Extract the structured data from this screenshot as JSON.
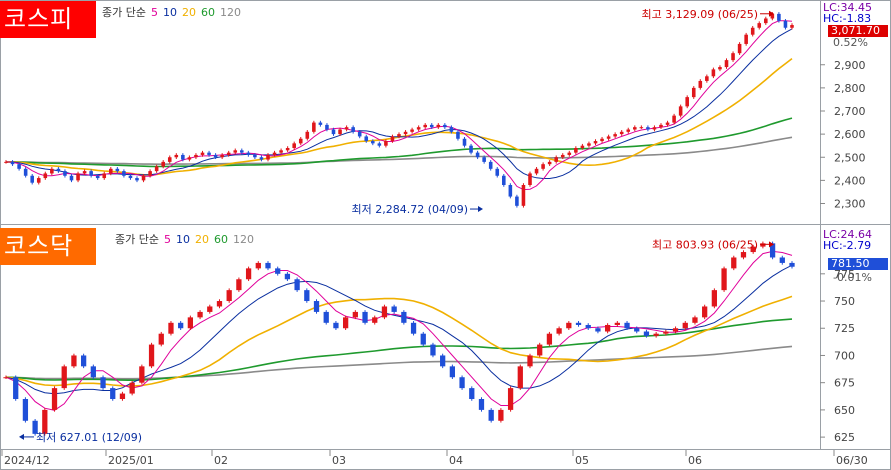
{
  "panels": [
    {
      "title": "코스피",
      "title_color": "#ff0000",
      "legend": {
        "prefix": "종가 단순",
        "periods": [
          "5",
          "10",
          "20",
          "60",
          "120"
        ]
      },
      "lc": "LC:34.45",
      "hc": "HC:-1.83",
      "current_price": "3,071.70",
      "current_color": "#dd0000",
      "change_pct": "0.52%",
      "high_note": "최고 3,129.09 (06/25)",
      "low_note": "최저 2,284.72 (04/09)"
    },
    {
      "title": "코스닥",
      "title_color": "#ff6a00",
      "legend": {
        "prefix": "종가 단순",
        "periods": [
          "5",
          "10",
          "20",
          "60",
          "120"
        ]
      },
      "lc": "LC:24.64",
      "hc": "HC:-2.79",
      "current_price": "781.50",
      "current_color": "#1f4fd8",
      "change_pct": "-0.01%",
      "high_note": "최고 803.93 (06/25)",
      "low_note": "최저 627.01 (12/09)"
    }
  ],
  "ma_colors": {
    "5": "#e0009a",
    "10": "#0a2fa0",
    "20": "#f0b000",
    "60": "#1f9a2e",
    "120": "#8a8a8a"
  },
  "x_axis_labels": [
    "2024/12",
    "2025/01",
    "02",
    "03",
    "04",
    "05",
    "06",
    "06/30"
  ],
  "chart_data": [
    {
      "type": "candlestick",
      "title": "코스피",
      "ylim": [
        2220,
        3180
      ],
      "y_ticks": [
        2300,
        2400,
        2500,
        2600,
        2700,
        2800,
        2900
      ],
      "close": [
        2480,
        2470,
        2450,
        2420,
        2390,
        2410,
        2430,
        2450,
        2440,
        2420,
        2400,
        2430,
        2440,
        2420,
        2410,
        2430,
        2450,
        2440,
        2420,
        2410,
        2400,
        2420,
        2440,
        2460,
        2480,
        2500,
        2510,
        2490,
        2500,
        2510,
        2520,
        2510,
        2500,
        2510,
        2520,
        2530,
        2520,
        2510,
        2500,
        2490,
        2510,
        2520,
        2530,
        2540,
        2560,
        2580,
        2610,
        2650,
        2640,
        2620,
        2600,
        2620,
        2630,
        2610,
        2590,
        2570,
        2560,
        2550,
        2570,
        2590,
        2600,
        2610,
        2620,
        2630,
        2640,
        2630,
        2640,
        2630,
        2610,
        2580,
        2550,
        2520,
        2500,
        2480,
        2450,
        2420,
        2380,
        2330,
        2290,
        2380,
        2430,
        2450,
        2470,
        2480,
        2500,
        2510,
        2520,
        2540,
        2550,
        2560,
        2570,
        2580,
        2590,
        2600,
        2610,
        2620,
        2630,
        2630,
        2620,
        2630,
        2640,
        2650,
        2680,
        2720,
        2760,
        2800,
        2830,
        2850,
        2880,
        2890,
        2920,
        2950,
        2990,
        3030,
        3060,
        3080,
        3100,
        3120,
        3090,
        3060,
        3071.7
      ],
      "high_annotation": {
        "label": "최고 3,129.09 (06/25)",
        "value": 3129.09
      },
      "low_annotation": {
        "label": "최저 2,284.72 (04/09)",
        "value": 2284.72
      }
    },
    {
      "type": "candlestick",
      "title": "코스닥",
      "ylim": [
        615,
        818
      ],
      "y_ticks": [
        625,
        650,
        675,
        700,
        725,
        750,
        775
      ],
      "close": [
        680,
        660,
        640,
        628,
        650,
        670,
        690,
        700,
        690,
        680,
        670,
        660,
        665,
        675,
        690,
        710,
        720,
        730,
        725,
        735,
        740,
        745,
        750,
        760,
        770,
        780,
        785,
        780,
        775,
        770,
        760,
        750,
        740,
        730,
        725,
        735,
        740,
        730,
        735,
        745,
        740,
        730,
        720,
        710,
        700,
        690,
        680,
        670,
        660,
        650,
        640,
        650,
        670,
        690,
        700,
        710,
        720,
        725,
        730,
        728,
        725,
        722,
        728,
        730,
        725,
        722,
        718,
        720,
        722,
        725,
        730,
        735,
        745,
        760,
        780,
        790,
        795,
        800,
        803,
        790,
        785,
        781.5
      ],
      "high_annotation": {
        "label": "최고 803.93 (06/25)",
        "value": 803.93
      },
      "low_annotation": {
        "label": "최저 627.01 (12/09)",
        "value": 627.01
      }
    }
  ]
}
